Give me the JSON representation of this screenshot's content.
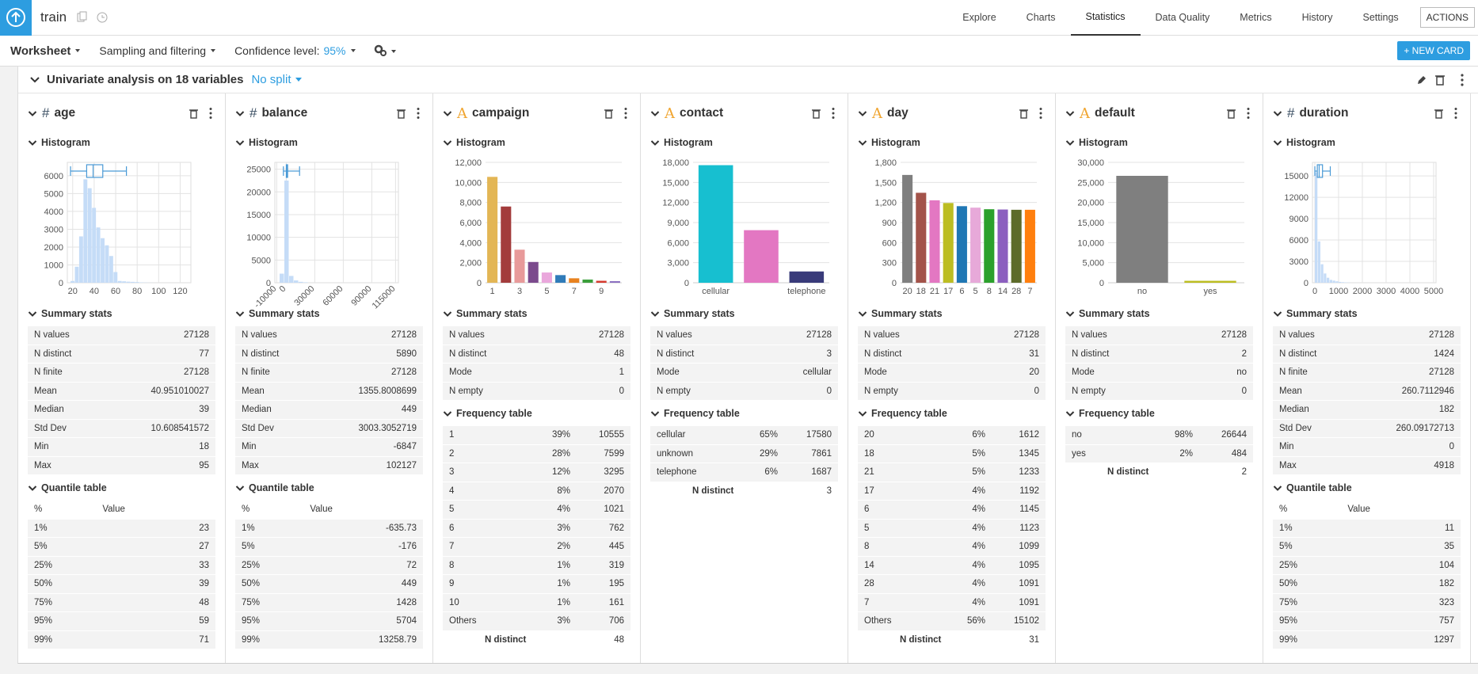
{
  "header": {
    "title": "train",
    "tabs": [
      "Explore",
      "Charts",
      "Statistics",
      "Data Quality",
      "Metrics",
      "History",
      "Settings"
    ],
    "actions": "ACTIONS"
  },
  "toolbar": {
    "worksheet": "Worksheet",
    "sampling": "Sampling and filtering",
    "confidence_label": "Confidence level:",
    "confidence_value": "95%",
    "new_card": "+ NEW CARD"
  },
  "card": {
    "title": "Univariate analysis on 18 variables",
    "split": "No split"
  },
  "columns": [
    {
      "icon": "#",
      "name": "age",
      "histogram_label": "Histogram",
      "chart": {
        "type": "histogram",
        "color": "#c5dcf7",
        "box_color": "#4a9ad6",
        "grid": true,
        "bins": [
          18,
          22,
          26,
          30,
          34,
          38,
          42,
          46,
          50,
          54,
          58,
          62,
          66,
          70,
          74,
          78,
          82,
          86,
          90,
          95
        ],
        "values": [
          100,
          900,
          2600,
          5800,
          5300,
          4200,
          3100,
          2500,
          2100,
          1500,
          600,
          100,
          80,
          60,
          50,
          40,
          20,
          10,
          5
        ],
        "xlim": [
          15,
          130
        ],
        "xticks": [
          20,
          40,
          60,
          80,
          100,
          120
        ],
        "ylim": [
          0,
          6750
        ],
        "yticks": [
          0,
          1000,
          2000,
          3000,
          4000,
          5000,
          6000
        ],
        "box": [
          18,
          33,
          39,
          48,
          70
        ]
      },
      "summary_label": "Summary stats",
      "summary": [
        [
          "N values",
          "27128"
        ],
        [
          "N distinct",
          "77"
        ],
        [
          "N finite",
          "27128"
        ],
        [
          "Mean",
          "40.951010027"
        ],
        [
          "Median",
          "39"
        ],
        [
          "Std Dev",
          "10.608541572"
        ],
        [
          "Min",
          "18"
        ],
        [
          "Max",
          "95"
        ]
      ],
      "quantile_label": "Quantile table",
      "quantile_header": [
        "%",
        "Value"
      ],
      "quantiles": [
        [
          "1%",
          "23"
        ],
        [
          "5%",
          "27"
        ],
        [
          "25%",
          "33"
        ],
        [
          "50%",
          "39"
        ],
        [
          "75%",
          "48"
        ],
        [
          "95%",
          "59"
        ],
        [
          "99%",
          "71"
        ]
      ]
    },
    {
      "icon": "#",
      "name": "balance",
      "histogram_label": "Histogram",
      "chart": {
        "type": "histogram",
        "color": "#c5dcf7",
        "box_color": "#4a9ad6",
        "grid": true,
        "rotated_xticks": true,
        "bins": [
          -7000,
          -2000,
          3000,
          8000,
          13000,
          18000,
          23000
        ],
        "values": [
          2000,
          22500,
          1500,
          500,
          200,
          100
        ],
        "xlim": [
          -12000,
          118000
        ],
        "xticks": [
          -10000,
          0,
          30000,
          60000,
          90000,
          115000
        ],
        "ylim": [
          0,
          26500
        ],
        "yticks": [
          0,
          5000,
          10000,
          15000,
          20000,
          25000
        ],
        "box": [
          -3000,
          72,
          449,
          1428,
          14000
        ]
      },
      "summary_label": "Summary stats",
      "summary": [
        [
          "N values",
          "27128"
        ],
        [
          "N distinct",
          "5890"
        ],
        [
          "N finite",
          "27128"
        ],
        [
          "Mean",
          "1355.8008699"
        ],
        [
          "Median",
          "449"
        ],
        [
          "Std Dev",
          "3003.3052719"
        ],
        [
          "Min",
          "-6847"
        ],
        [
          "Max",
          "102127"
        ]
      ],
      "quantile_label": "Quantile table",
      "quantile_header": [
        "%",
        "Value"
      ],
      "quantiles": [
        [
          "1%",
          "-635.73"
        ],
        [
          "5%",
          "-176"
        ],
        [
          "25%",
          "72"
        ],
        [
          "50%",
          "449"
        ],
        [
          "75%",
          "1428"
        ],
        [
          "95%",
          "5704"
        ],
        [
          "99%",
          "13258.79"
        ]
      ]
    },
    {
      "icon": "A",
      "name": "campaign",
      "histogram_label": "Histogram",
      "chart": {
        "type": "bar",
        "grid": true,
        "categories": [
          "1",
          null,
          "3",
          null,
          "5",
          null,
          "7",
          null,
          "9",
          null
        ],
        "values": [
          10555,
          7599,
          3295,
          2070,
          1021,
          762,
          445,
          319,
          195,
          161
        ],
        "colors": [
          "#e3b655",
          "#a33c3c",
          "#e89a9a",
          "#7b4a8d",
          "#eaa7dc",
          "#2f7bb9",
          "#e8821f",
          "#3b9e3b",
          "#d53a2f",
          "#8c70c1"
        ],
        "ylim": [
          0,
          12000
        ],
        "yticks": [
          0,
          {
            "value": 2000,
            "label": "2,000"
          },
          {
            "value": 4000,
            "label": "4,000"
          },
          {
            "value": 6000,
            "label": "6,000"
          },
          {
            "value": 8000,
            "label": "8,000"
          },
          {
            "value": 10000,
            "label": "10,000"
          },
          {
            "value": 12000,
            "label": "12,000"
          }
        ]
      },
      "summary_label": "Summary stats",
      "summary": [
        [
          "N values",
          "27128"
        ],
        [
          "N distinct",
          "48"
        ],
        [
          "Mode",
          "1"
        ],
        [
          "N empty",
          "0"
        ]
      ],
      "frequency_label": "Frequency table",
      "frequency": [
        [
          "1",
          "39%",
          "10555"
        ],
        [
          "2",
          "28%",
          "7599"
        ],
        [
          "3",
          "12%",
          "3295"
        ],
        [
          "4",
          "8%",
          "2070"
        ],
        [
          "5",
          "4%",
          "1021"
        ],
        [
          "6",
          "3%",
          "762"
        ],
        [
          "7",
          "2%",
          "445"
        ],
        [
          "8",
          "1%",
          "319"
        ],
        [
          "9",
          "1%",
          "195"
        ],
        [
          "10",
          "1%",
          "161"
        ],
        [
          "Others",
          "3%",
          "706"
        ]
      ],
      "frequency_total": [
        "N distinct",
        "48"
      ]
    },
    {
      "icon": "A",
      "name": "contact",
      "histogram_label": "Histogram",
      "chart": {
        "type": "bar",
        "grid": true,
        "categories": [
          "cellular",
          null,
          "telephone"
        ],
        "values": [
          17580,
          7861,
          1687
        ],
        "colors": [
          "#17bfd0",
          "#e377c2",
          "#393b7a"
        ],
        "ylim": [
          0,
          18000
        ],
        "yticks": [
          0,
          {
            "value": 3000,
            "label": "3,000"
          },
          {
            "value": 6000,
            "label": "6,000"
          },
          {
            "value": 9000,
            "label": "9,000"
          },
          {
            "value": 12000,
            "label": "12,000"
          },
          {
            "value": 15000,
            "label": "15,000"
          },
          {
            "value": 18000,
            "label": "18,000"
          }
        ]
      },
      "summary_label": "Summary stats",
      "summary": [
        [
          "N values",
          "27128"
        ],
        [
          "N distinct",
          "3"
        ],
        [
          "Mode",
          "cellular"
        ],
        [
          "N empty",
          "0"
        ]
      ],
      "frequency_label": "Frequency table",
      "frequency": [
        [
          "cellular",
          "65%",
          "17580"
        ],
        [
          "unknown",
          "29%",
          "7861"
        ],
        [
          "telephone",
          "6%",
          "1687"
        ]
      ],
      "frequency_total": [
        "N distinct",
        "3"
      ]
    },
    {
      "icon": "A",
      "name": "day",
      "histogram_label": "Histogram",
      "chart": {
        "type": "bar",
        "grid": true,
        "categories": [
          "20",
          "18",
          "21",
          "17",
          "6",
          "5",
          "8",
          "14",
          "28",
          "7"
        ],
        "values": [
          1612,
          1345,
          1233,
          1192,
          1145,
          1123,
          1099,
          1095,
          1091,
          1091
        ],
        "colors": [
          "#7f7f7f",
          "#a3534a",
          "#e377c2",
          "#bcbd22",
          "#1f77b4",
          "#e7a9d9",
          "#2ca02c",
          "#8c5fbf",
          "#5d6b2a",
          "#ff7f0e"
        ],
        "ylim": [
          0,
          1800
        ],
        "yticks": [
          0,
          300,
          600,
          900,
          {
            "value": 1200,
            "label": "1,200"
          },
          {
            "value": 1500,
            "label": "1,500"
          },
          {
            "value": 1800,
            "label": "1,800"
          }
        ]
      },
      "summary_label": "Summary stats",
      "summary": [
        [
          "N values",
          "27128"
        ],
        [
          "N distinct",
          "31"
        ],
        [
          "Mode",
          "20"
        ],
        [
          "N empty",
          "0"
        ]
      ],
      "frequency_label": "Frequency table",
      "frequency": [
        [
          "20",
          "6%",
          "1612"
        ],
        [
          "18",
          "5%",
          "1345"
        ],
        [
          "21",
          "5%",
          "1233"
        ],
        [
          "17",
          "4%",
          "1192"
        ],
        [
          "6",
          "4%",
          "1145"
        ],
        [
          "5",
          "4%",
          "1123"
        ],
        [
          "8",
          "4%",
          "1099"
        ],
        [
          "14",
          "4%",
          "1095"
        ],
        [
          "28",
          "4%",
          "1091"
        ],
        [
          "7",
          "4%",
          "1091"
        ],
        [
          "Others",
          "56%",
          "15102"
        ]
      ],
      "frequency_total": [
        "N distinct",
        "31"
      ]
    },
    {
      "icon": "A",
      "name": "default",
      "histogram_label": "Histogram",
      "chart": {
        "type": "bar",
        "grid": true,
        "categories": [
          "no",
          "yes"
        ],
        "values": [
          26644,
          484
        ],
        "colors": [
          "#7f7f7f",
          "#bcbd22"
        ],
        "ylim": [
          0,
          30000
        ],
        "yticks": [
          0,
          {
            "value": 5000,
            "label": "5,000"
          },
          {
            "value": 10000,
            "label": "10,000"
          },
          {
            "value": 15000,
            "label": "15,000"
          },
          {
            "value": 20000,
            "label": "20,000"
          },
          {
            "value": 25000,
            "label": "25,000"
          },
          {
            "value": 30000,
            "label": "30,000"
          }
        ]
      },
      "summary_label": "Summary stats",
      "summary": [
        [
          "N values",
          "27128"
        ],
        [
          "N distinct",
          "2"
        ],
        [
          "Mode",
          "no"
        ],
        [
          "N empty",
          "0"
        ]
      ],
      "frequency_label": "Frequency table",
      "frequency": [
        [
          "no",
          "98%",
          "26644"
        ],
        [
          "yes",
          "2%",
          "484"
        ]
      ],
      "frequency_total": [
        "N distinct",
        "2"
      ]
    },
    {
      "icon": "#",
      "name": "duration",
      "histogram_label": "Histogram",
      "chart": {
        "type": "histogram",
        "color": "#c5dcf7",
        "box_color": "#4a9ad6",
        "grid": true,
        "bins": [
          0,
          125,
          250,
          375,
          500,
          625,
          750,
          875,
          1000,
          1125,
          1250,
          1375,
          1500
        ],
        "values": [
          15500,
          5800,
          2600,
          1300,
          700,
          400,
          300,
          200,
          120,
          80,
          50,
          30
        ],
        "xlim": [
          -100,
          5100
        ],
        "xticks": [
          0,
          1000,
          2000,
          3000,
          4000,
          5000
        ],
        "ylim": [
          0,
          16900
        ],
        "yticks": [
          0,
          3000,
          6000,
          9000,
          12000,
          15000
        ],
        "box": [
          0,
          104,
          182,
          323,
          650
        ]
      },
      "summary_label": "Summary stats",
      "summary": [
        [
          "N values",
          "27128"
        ],
        [
          "N distinct",
          "1424"
        ],
        [
          "N finite",
          "27128"
        ],
        [
          "Mean",
          "260.7112946"
        ],
        [
          "Median",
          "182"
        ],
        [
          "Std Dev",
          "260.09172713"
        ],
        [
          "Min",
          "0"
        ],
        [
          "Max",
          "4918"
        ]
      ],
      "quantile_label": "Quantile table",
      "quantile_header": [
        "%",
        "Value"
      ],
      "quantiles": [
        [
          "1%",
          "11"
        ],
        [
          "5%",
          "35"
        ],
        [
          "25%",
          "104"
        ],
        [
          "50%",
          "182"
        ],
        [
          "75%",
          "323"
        ],
        [
          "95%",
          "757"
        ],
        [
          "99%",
          "1297"
        ]
      ]
    }
  ]
}
